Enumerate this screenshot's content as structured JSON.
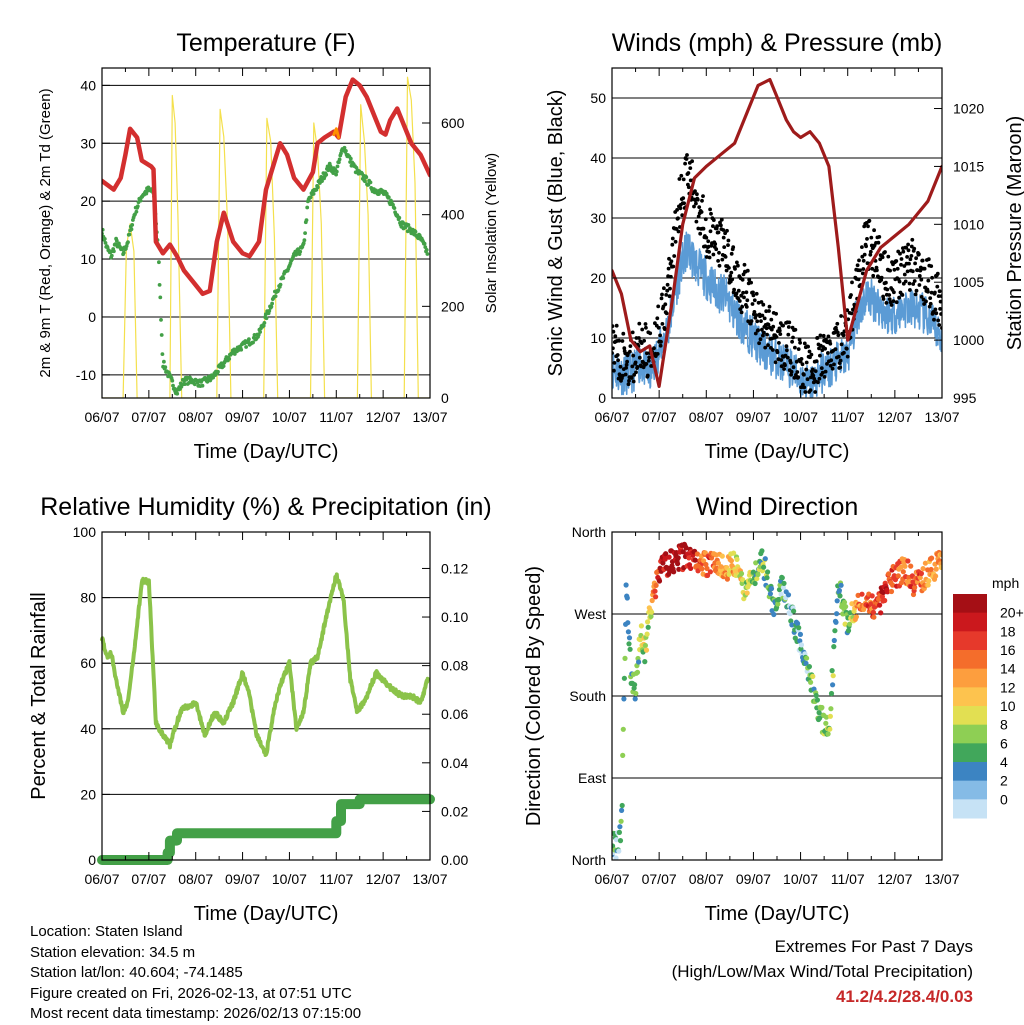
{
  "chart_data": [
    {
      "type": "line",
      "title": "Temperature (F)",
      "xlabel": "Time (Day/UTC)",
      "ylabel": "2m & 9m T (Red, Orange) & 2m Td (Green)",
      "ylabel_right": "Solar Insolation (Yellow)",
      "x_ticks": [
        "06/07",
        "07/07",
        "08/07",
        "09/07",
        "10/07",
        "11/07",
        "12/07",
        "13/07"
      ],
      "xlim": [
        0,
        7
      ],
      "ylim": [
        -14,
        43
      ],
      "yticks": [
        -10,
        0,
        10,
        20,
        30,
        40
      ],
      "y2lim": [
        0,
        720
      ],
      "y2ticks": [
        0,
        200,
        400,
        600
      ],
      "grid": true,
      "colors": {
        "temp_2m": "#d32f2f",
        "temp_9m": "#ff8f00",
        "dewpoint": "#43a047",
        "solar": "#f4e04d"
      },
      "series": [
        {
          "name": "2m T",
          "color": "#d32f2f",
          "axis": "left",
          "x": [
            0,
            0.25,
            0.4,
            0.5,
            0.6,
            0.75,
            0.85,
            1.05,
            1.1,
            1.15,
            1.3,
            1.45,
            1.6,
            1.75,
            1.95,
            2.15,
            2.3,
            2.45,
            2.6,
            2.8,
            3.0,
            3.15,
            3.35,
            3.5,
            3.8,
            3.95,
            4.1,
            4.3,
            4.5,
            4.6,
            4.75,
            4.95,
            5.05,
            5.2,
            5.35,
            5.5,
            5.65,
            5.85,
            5.95,
            6.05,
            6.15,
            6.3,
            6.45,
            6.6,
            6.8,
            7.0
          ],
          "y": [
            23.5,
            22,
            24,
            28,
            32.5,
            31,
            27,
            26,
            25.5,
            13,
            11,
            12.5,
            10.5,
            8,
            6,
            4,
            4.5,
            13,
            18,
            13,
            11,
            10.5,
            13,
            22,
            30,
            28,
            24,
            22,
            25,
            30,
            31,
            32,
            31,
            38,
            41,
            40,
            38,
            34,
            32,
            31.5,
            34,
            36,
            33,
            30,
            28,
            24.5
          ]
        },
        {
          "name": "9m T",
          "color": "#ff8f00",
          "axis": "left",
          "x": [
            4.95,
            5.0,
            5.05
          ],
          "y": [
            31.5,
            32.5,
            31
          ]
        },
        {
          "name": "2m Td",
          "color": "#43a047",
          "axis": "left",
          "x": [
            0,
            0.1,
            0.2,
            0.3,
            0.45,
            0.55,
            0.7,
            0.85,
            1.0,
            1.1,
            1.2,
            1.3,
            1.45,
            1.6,
            1.75,
            1.95,
            2.1,
            2.35,
            2.6,
            2.8,
            3.0,
            3.2,
            3.35,
            3.55,
            3.75,
            3.95,
            4.1,
            4.3,
            4.4,
            4.55,
            4.7,
            4.85,
            5.0,
            5.15,
            5.3,
            5.45,
            5.6,
            5.8,
            6.0,
            6.2,
            6.4,
            6.6,
            6.8,
            6.95
          ],
          "y": [
            15,
            12,
            10.5,
            13,
            11,
            13,
            18,
            21,
            22,
            21.5,
            12,
            -8,
            -10.5,
            -13,
            -11,
            -11,
            -11.5,
            -10.5,
            -8,
            -6,
            -5,
            -4,
            -3,
            1,
            5,
            8,
            10.5,
            12,
            20,
            22,
            24,
            26,
            25,
            29.5,
            27,
            25,
            24,
            22,
            21.5,
            19.5,
            16,
            15,
            13.5,
            11
          ]
        },
        {
          "name": "Solar Insolation",
          "color": "#f4e04d",
          "axis": "right",
          "x": [
            0,
            0.45,
            0.52,
            0.6,
            0.68,
            0.75,
            1.45,
            1.5,
            1.56,
            1.62,
            1.7,
            2.45,
            2.52,
            2.6,
            2.68,
            2.75,
            3.45,
            3.52,
            3.6,
            3.68,
            3.75,
            4.45,
            4.52,
            4.6,
            4.68,
            4.75,
            5.45,
            5.52,
            5.6,
            5.68,
            5.75,
            6.45,
            6.52,
            6.6,
            6.68,
            6.75,
            7.0
          ],
          "y": [
            0,
            0,
            330,
            380,
            320,
            0,
            0,
            660,
            600,
            400,
            0,
            0,
            630,
            570,
            380,
            0,
            0,
            610,
            560,
            350,
            0,
            0,
            600,
            540,
            380,
            0,
            0,
            640,
            560,
            400,
            0,
            0,
            700,
            650,
            470,
            0,
            0
          ]
        }
      ]
    },
    {
      "type": "scatter",
      "title": "Winds (mph) & Pressure (mb)",
      "xlabel": "Time (Day/UTC)",
      "ylabel": "Sonic Wind & Gust (Blue, Black)",
      "ylabel_right": "Station Pressure (Maroon)",
      "x_ticks": [
        "06/07",
        "07/07",
        "08/07",
        "09/07",
        "10/07",
        "11/07",
        "12/07",
        "13/07"
      ],
      "xlim": [
        0,
        7
      ],
      "ylim": [
        0,
        55
      ],
      "yticks": [
        0,
        10,
        20,
        30,
        40,
        50
      ],
      "y2lim": [
        995,
        1023.5
      ],
      "y2ticks": [
        995,
        1000,
        1005,
        1010,
        1015,
        1020
      ],
      "grid": true,
      "colors": {
        "wind": "#5b9bd5",
        "gust": "#000000",
        "pressure": "#9e1b1b"
      },
      "series": [
        {
          "name": "Sonic Wind",
          "color": "#5b9bd5",
          "axis": "left",
          "x": [
            0,
            0.2,
            0.4,
            0.6,
            0.8,
            1.0,
            1.2,
            1.4,
            1.6,
            1.8,
            2.0,
            2.2,
            2.4,
            2.6,
            2.8,
            3.0,
            3.2,
            3.4,
            3.6,
            3.8,
            4.0,
            4.2,
            4.4,
            4.6,
            4.8,
            5.0,
            5.2,
            5.4,
            5.6,
            5.8,
            6.0,
            6.2,
            6.4,
            6.6,
            6.8,
            7.0
          ],
          "y": [
            5,
            4,
            4,
            6,
            4,
            8,
            12,
            20,
            25,
            22,
            20,
            18,
            17,
            14,
            12,
            10,
            8,
            7,
            6,
            5,
            3,
            2,
            4,
            5,
            6,
            7,
            14,
            17,
            16,
            14,
            14,
            15,
            15,
            14,
            12,
            10
          ]
        },
        {
          "name": "Gust",
          "color": "#000000",
          "axis": "left",
          "x": [
            0,
            0.2,
            0.4,
            0.6,
            0.8,
            1.0,
            1.2,
            1.4,
            1.6,
            1.8,
            2.0,
            2.2,
            2.4,
            2.6,
            2.8,
            3.0,
            3.2,
            3.4,
            3.6,
            3.8,
            4.0,
            4.2,
            4.4,
            4.6,
            4.8,
            5.0,
            5.2,
            5.4,
            5.6,
            5.8,
            6.0,
            6.2,
            6.4,
            6.6,
            6.8,
            7.0
          ],
          "y": [
            9,
            7,
            6,
            9,
            7,
            12,
            18,
            32,
            37,
            33,
            28,
            26,
            25,
            20,
            18,
            15,
            12,
            11,
            9,
            8,
            6,
            4,
            6,
            8,
            9,
            11,
            20,
            26,
            24,
            20,
            20,
            22,
            22,
            20,
            18,
            15
          ]
        },
        {
          "name": "Station Pressure",
          "color": "#9e1b1b",
          "axis": "right",
          "x": [
            0,
            0.2,
            0.4,
            0.6,
            0.8,
            1.0,
            1.15,
            1.3,
            1.5,
            1.75,
            2.0,
            2.3,
            2.6,
            2.9,
            3.1,
            3.35,
            3.5,
            3.7,
            3.85,
            4.0,
            4.2,
            4.4,
            4.6,
            4.8,
            5.0,
            5.2,
            5.4,
            5.7,
            6.0,
            6.3,
            6.5,
            6.7,
            6.9,
            7.0
          ],
          "y": [
            1006,
            1004,
            1000,
            999,
            999.5,
            996,
            1000,
            1004,
            1010,
            1014,
            1015,
            1016,
            1017,
            1020,
            1022,
            1022.5,
            1021,
            1019,
            1018,
            1017.5,
            1018,
            1017,
            1015,
            1008,
            1000,
            1003,
            1006,
            1008,
            1009,
            1010,
            1011,
            1012,
            1014,
            1015
          ]
        }
      ]
    },
    {
      "type": "line",
      "title": "Relative Humidity (%) & Precipitation (in)",
      "xlabel": "Time (Day/UTC)",
      "ylabel": "Percent & Total Rainfall",
      "x_ticks": [
        "06/07",
        "07/07",
        "08/07",
        "09/07",
        "10/07",
        "11/07",
        "12/07",
        "13/07"
      ],
      "xlim": [
        0,
        7
      ],
      "ylim": [
        0,
        100
      ],
      "yticks": [
        0,
        20,
        40,
        60,
        80,
        100
      ],
      "y2lim": [
        0,
        0.135
      ],
      "y2ticks": [
        0.0,
        0.02,
        0.04,
        0.06,
        0.08,
        0.1,
        0.12
      ],
      "grid": true,
      "colors": {
        "rh": "#8bc34a",
        "precip": "#43a047"
      },
      "series": [
        {
          "name": "Relative Humidity",
          "color": "#8bc34a",
          "axis": "left",
          "x": [
            0,
            0.1,
            0.2,
            0.3,
            0.45,
            0.55,
            0.7,
            0.85,
            1.0,
            1.15,
            1.3,
            1.45,
            1.55,
            1.7,
            1.85,
            2.0,
            2.2,
            2.4,
            2.6,
            2.8,
            3.0,
            3.15,
            3.3,
            3.5,
            3.7,
            3.85,
            4.0,
            4.15,
            4.3,
            4.45,
            4.6,
            4.8,
            5.0,
            5.15,
            5.3,
            5.45,
            5.65,
            5.85,
            6.0,
            6.2,
            6.4,
            6.6,
            6.8,
            6.95
          ],
          "y": [
            68,
            62,
            63,
            55,
            45,
            48,
            65,
            85,
            85,
            42,
            38,
            35,
            40,
            46,
            47,
            48,
            38,
            45,
            42,
            48,
            57,
            50,
            38,
            32,
            48,
            55,
            60,
            40,
            45,
            60,
            62,
            75,
            87,
            80,
            55,
            45,
            50,
            57,
            55,
            52,
            50,
            50,
            48,
            55
          ]
        },
        {
          "name": "Total Precipitation",
          "color": "#43a047",
          "axis": "right",
          "x": [
            0,
            1.0,
            1.4,
            1.45,
            1.6,
            2.0,
            3.0,
            4.0,
            4.95,
            5.0,
            5.1,
            5.5,
            6.0,
            7.0
          ],
          "y": [
            0.0,
            0.0,
            0.003,
            0.008,
            0.011,
            0.011,
            0.011,
            0.011,
            0.011,
            0.016,
            0.023,
            0.025,
            0.025,
            0.025
          ]
        }
      ]
    },
    {
      "type": "scatter",
      "title": "Wind Direction",
      "xlabel": "Time (Day/UTC)",
      "ylabel": "Direction (Colored By Speed)",
      "x_ticks": [
        "06/07",
        "07/07",
        "08/07",
        "09/07",
        "10/07",
        "11/07",
        "12/07",
        "13/07"
      ],
      "xlim": [
        0,
        7
      ],
      "ylim": [
        0,
        360
      ],
      "ytick_values": [
        0,
        90,
        180,
        270,
        360
      ],
      "ytick_labels": [
        "North",
        "East",
        "South",
        "West",
        "North"
      ],
      "grid": true,
      "colorbar": {
        "unit": "mph",
        "labels": [
          "20+",
          "18",
          "16",
          "14",
          "12",
          "10",
          "8",
          "6",
          "4",
          "2",
          "0"
        ],
        "colors": [
          "#a50f15",
          "#cb181d",
          "#e6392b",
          "#f46d2b",
          "#fd9e3e",
          "#fdc34e",
          "#e2df52",
          "#8ecf54",
          "#41a75b",
          "#3c84c2",
          "#85bbe6",
          "#c6e2f5"
        ]
      },
      "series": [
        {
          "name": "Direction",
          "x": [
            0,
            0.1,
            0.2,
            0.3,
            0.4,
            0.5,
            0.6,
            0.7,
            0.8,
            1.0,
            1.2,
            1.4,
            1.6,
            1.8,
            2.0,
            2.2,
            2.4,
            2.6,
            2.8,
            3.0,
            3.2,
            3.4,
            3.6,
            3.8,
            4.0,
            4.2,
            4.4,
            4.6,
            4.8,
            5.0,
            5.2,
            5.4,
            5.6,
            5.8,
            6.0,
            6.2,
            6.4,
            6.6,
            6.8,
            7.0
          ],
          "y": [
            20,
            15,
            30,
            300,
            210,
            180,
            250,
            230,
            270,
            320,
            325,
            330,
            335,
            330,
            325,
            330,
            320,
            325,
            300,
            310,
            330,
            280,
            300,
            270,
            240,
            200,
            160,
            140,
            300,
            260,
            280,
            290,
            270,
            300,
            310,
            320,
            305,
            310,
            320,
            330
          ],
          "speed": [
            3,
            3,
            4,
            4,
            4,
            4,
            6,
            7,
            8,
            18,
            20,
            20,
            19,
            16,
            15,
            14,
            12,
            10,
            8,
            6,
            5,
            4,
            3,
            2,
            2,
            4,
            6,
            6,
            4,
            5,
            12,
            14,
            16,
            17,
            15,
            14,
            15,
            14,
            13,
            12
          ]
        }
      ]
    }
  ],
  "footer": {
    "location": "Location: Staten Island",
    "elevation": "Station elevation: 34.5 m",
    "latlon": "Station lat/lon: 40.604; -74.1485",
    "created": "Figure created on Fri, 2026-02-13, at 07:51 UTC",
    "recent": "Most recent data timestamp: 2026/02/13 07:15:00"
  },
  "extremes": {
    "title": "Extremes For Past 7 Days",
    "subtitle": "(High/Low/Max Wind/Total Precipitation)",
    "values": "41.2/4.2/28.4/0.03"
  }
}
